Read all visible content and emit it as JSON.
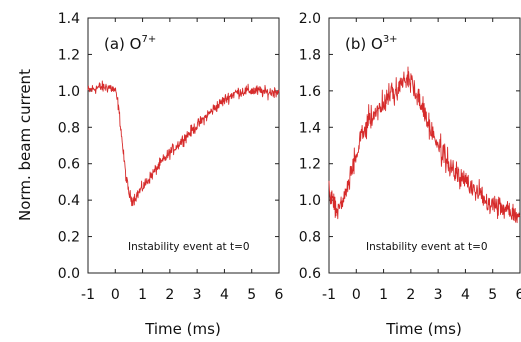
{
  "chart_data": [
    {
      "type": "line",
      "panel_label": "(a) O",
      "panel_label_sup": "7+",
      "ylabel": "Norm. beam current",
      "xlabel": "Time (ms)",
      "annotation": "Instability event at t=0",
      "xlim": [
        -1,
        6
      ],
      "ylim": [
        0,
        1.4
      ],
      "x_ticks": [
        "-1",
        "0",
        "1",
        "2",
        "3",
        "4",
        "5",
        "6"
      ],
      "y_ticks": [
        "0.0",
        "0.2",
        "0.4",
        "0.6",
        "0.8",
        "1.0",
        "1.2",
        "1.4"
      ],
      "series": [
        {
          "color": "#d62b2b",
          "noise": 0.022,
          "x": [
            -1,
            -0.6,
            -0.2,
            0.0,
            0.1,
            0.2,
            0.3,
            0.4,
            0.5,
            0.6,
            0.7,
            0.8,
            1.0,
            1.3,
            1.6,
            2.0,
            2.4,
            2.8,
            3.2,
            3.6,
            4.0,
            4.4,
            4.8,
            5.2,
            5.6,
            6.0
          ],
          "y": [
            1.0,
            1.02,
            1.02,
            1.0,
            0.93,
            0.8,
            0.65,
            0.52,
            0.44,
            0.4,
            0.41,
            0.43,
            0.47,
            0.53,
            0.59,
            0.66,
            0.72,
            0.78,
            0.84,
            0.9,
            0.95,
            0.99,
            1.0,
            1.0,
            0.99,
            1.0
          ]
        }
      ]
    },
    {
      "type": "line",
      "panel_label": "(b) O",
      "panel_label_sup": "3+",
      "xlabel": "Time (ms)",
      "annotation": "Instability event at t=0",
      "xlim": [
        -1,
        6
      ],
      "ylim": [
        0.6,
        2.0
      ],
      "x_ticks": [
        "-1",
        "0",
        "1",
        "2",
        "3",
        "4",
        "5",
        "6"
      ],
      "y_ticks": [
        "0.6",
        "0.8",
        "1.0",
        "1.2",
        "1.4",
        "1.6",
        "1.8",
        "2.0"
      ],
      "series": [
        {
          "color": "#d62b2b",
          "noise": 0.045,
          "x": [
            -1,
            -0.7,
            -0.4,
            -0.1,
            0.2,
            0.5,
            0.8,
            1.1,
            1.4,
            1.7,
            1.9,
            2.1,
            2.4,
            2.7,
            3.0,
            3.3,
            3.6,
            4.0,
            4.4,
            4.8,
            5.2,
            5.6,
            6.0
          ],
          "y": [
            1.05,
            0.95,
            1.02,
            1.2,
            1.35,
            1.45,
            1.5,
            1.55,
            1.6,
            1.65,
            1.67,
            1.62,
            1.52,
            1.4,
            1.3,
            1.22,
            1.15,
            1.1,
            1.05,
            1.0,
            0.97,
            0.95,
            0.92
          ]
        }
      ]
    }
  ]
}
